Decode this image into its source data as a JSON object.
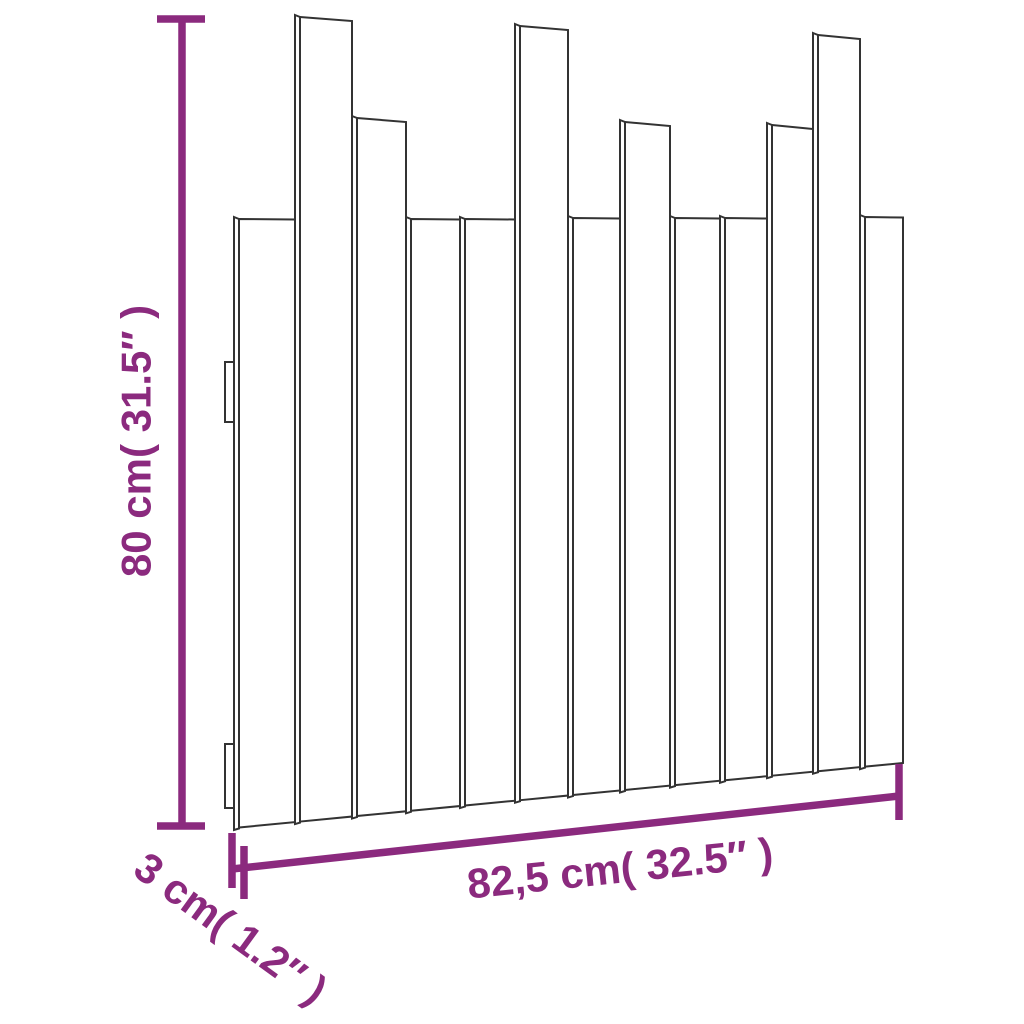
{
  "diagram": {
    "kind": "product-dimension-diagram",
    "product": "wall-mounted slatted headboard, front-left perspective line drawing",
    "background_color": "#ffffff",
    "colors": {
      "dimension_accent": "#8b2a7e",
      "outline": "#333333",
      "fill": "#ffffff"
    },
    "dimensions": {
      "height": {
        "label": "80 cm( 31.5″ )",
        "orientation": "vertical-left"
      },
      "width": {
        "label": "82,5 cm( 32.5″ )",
        "orientation": "bottom-slanted"
      },
      "depth": {
        "label": "3 cm( 1.2″ )",
        "orientation": "diagonal-bottom-left"
      }
    },
    "slats": [
      {
        "index": 1,
        "height": "short"
      },
      {
        "index": 2,
        "height": "extra-tall"
      },
      {
        "index": 3,
        "height": "medium"
      },
      {
        "index": 4,
        "height": "short"
      },
      {
        "index": 5,
        "height": "short"
      },
      {
        "index": 6,
        "height": "extra-tall"
      },
      {
        "index": 7,
        "height": "short"
      },
      {
        "index": 8,
        "height": "medium"
      },
      {
        "index": 9,
        "height": "short"
      },
      {
        "index": 10,
        "height": "short"
      },
      {
        "index": 11,
        "height": "medium"
      },
      {
        "index": 12,
        "height": "extra-tall"
      },
      {
        "index": 13,
        "height": "short"
      }
    ],
    "wall_bracket_count": 2
  }
}
